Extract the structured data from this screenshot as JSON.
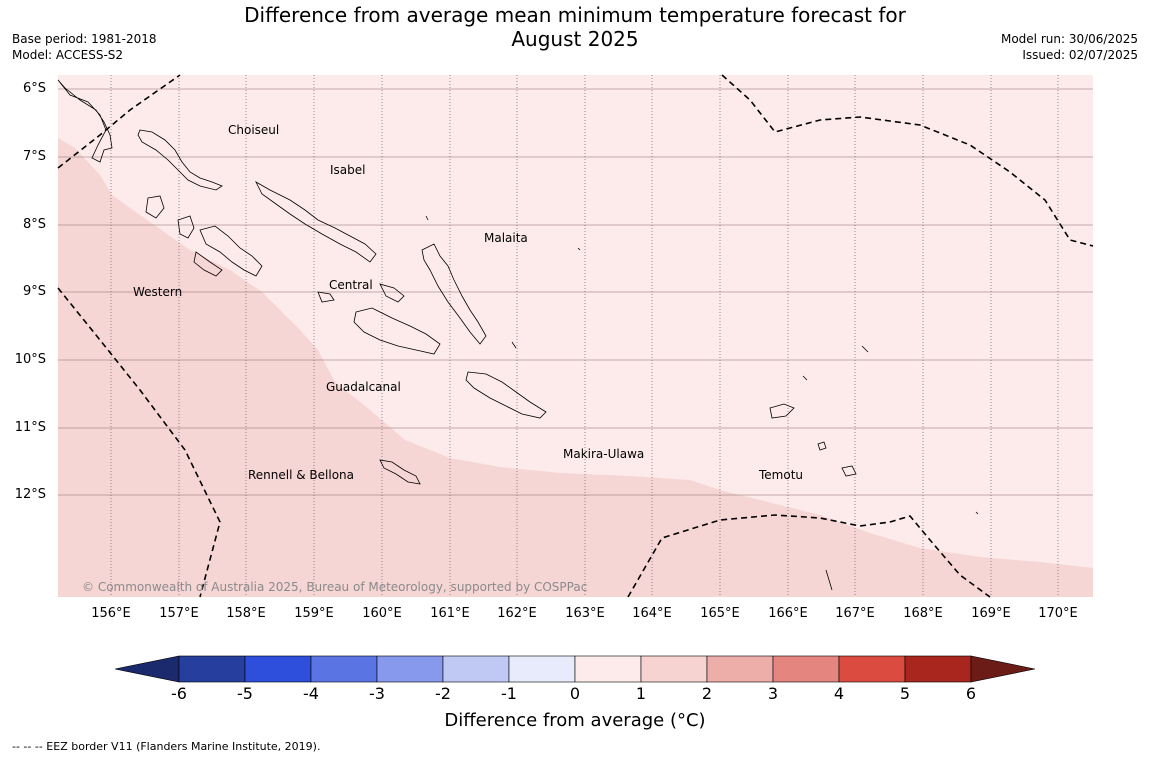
{
  "title_line1": "Difference from average mean minimum temperature forecast for",
  "title_line2": "August 2025",
  "base_period": "Base period: 1981-2018",
  "model": "Model: ACCESS-S2",
  "model_run": "Model run: 30/06/2025",
  "issued": "Issued: 02/07/2025",
  "lat_labels": [
    "6°S",
    "7°S",
    "8°S",
    "9°S",
    "10°S",
    "11°S",
    "12°S"
  ],
  "lon_labels": [
    "156°E",
    "157°E",
    "158°E",
    "159°E",
    "160°E",
    "161°E",
    "162°E",
    "163°E",
    "164°E",
    "165°E",
    "166°E",
    "167°E",
    "168°E",
    "169°E",
    "170°E"
  ],
  "regions": {
    "choiseul": "Choiseul",
    "isabel": "Isabel",
    "malaita": "Malaita",
    "western": "Western",
    "central": "Central",
    "guadalcanal": "Guadalcanal",
    "makira": "Makira-Ulawa",
    "rennell": "Rennell & Bellona",
    "temotu": "Temotu"
  },
  "copyright": "© Commonwealth of Australia 2025, Bureau of Meteorology, supported by COSPPac",
  "colorbar": {
    "ticks": [
      "-6",
      "-5",
      "-4",
      "-3",
      "-2",
      "-1",
      "0",
      "1",
      "2",
      "3",
      "4",
      "5",
      "6"
    ],
    "colors": [
      "#263f9e",
      "#2e4fdc",
      "#5b74e4",
      "#8799ec",
      "#c0c9f4",
      "#e8ebfb",
      "#fcebea",
      "#f6d3d1",
      "#edaeaa",
      "#e5857f",
      "#dc4b40",
      "#a9261f"
    ],
    "under_color": "#1a2a6c",
    "over_color": "#6b1c16",
    "label": "Difference from average (°C)"
  },
  "map_colors": {
    "band_0_1": "#fcebea",
    "band_1_2": "#f6d6d4"
  },
  "footnote": "--  --  -- EEZ border V11 (Flanders Marine Institute, 2019)."
}
